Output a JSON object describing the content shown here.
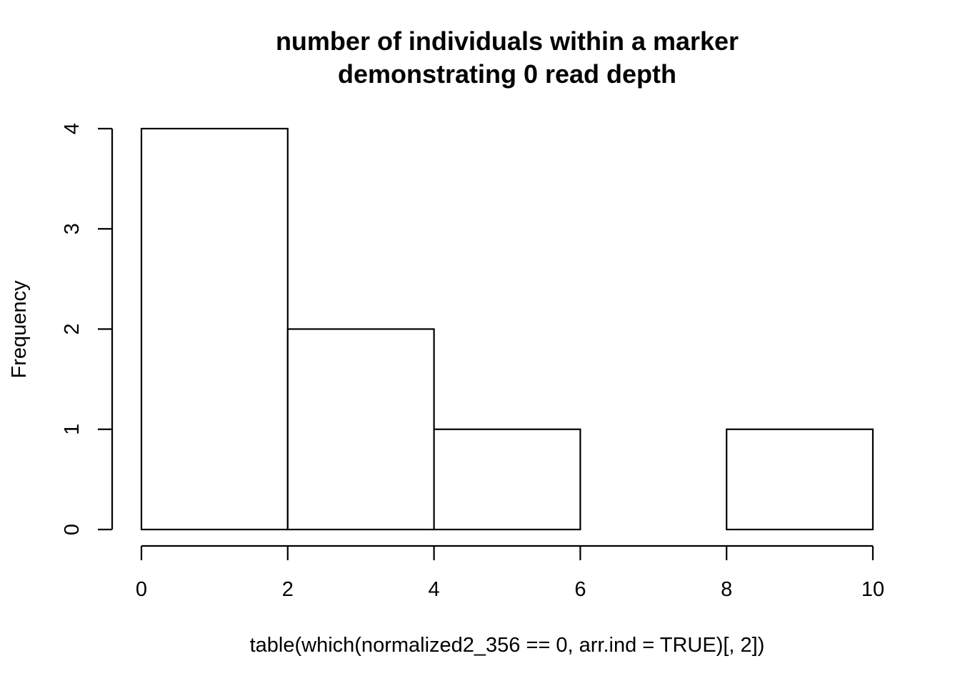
{
  "chart_data": {
    "type": "bar",
    "subtype": "histogram",
    "title_lines": [
      "number of individuals within a marker",
      "demonstrating 0 read depth"
    ],
    "xlabel": "table(which(normalized2_356 == 0, arr.ind = TRUE)[, 2])",
    "ylabel": "Frequency",
    "bins": [
      {
        "x0": 0,
        "x1": 2,
        "count": 4
      },
      {
        "x0": 2,
        "x1": 4,
        "count": 2
      },
      {
        "x0": 4,
        "x1": 6,
        "count": 1
      },
      {
        "x0": 6,
        "x1": 8,
        "count": 0
      },
      {
        "x0": 8,
        "x1": 10,
        "count": 1
      }
    ],
    "xlim": [
      0,
      10
    ],
    "ylim": [
      0,
      4
    ],
    "x_ticks": [
      0,
      2,
      4,
      6,
      8,
      10
    ],
    "y_ticks": [
      0,
      1,
      2,
      3,
      4
    ],
    "grid": false,
    "legend": "none",
    "colors": {
      "bar_fill": "#ffffff",
      "bar_stroke": "#000000"
    }
  }
}
